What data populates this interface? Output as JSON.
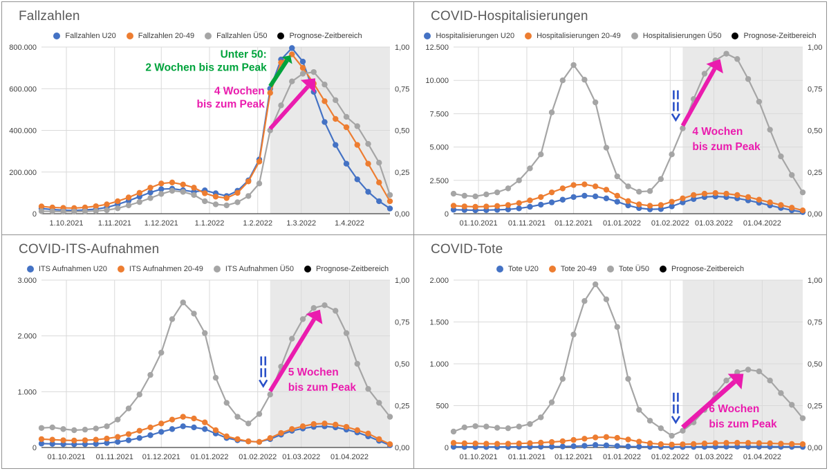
{
  "chart_data": [
    {
      "type": "line",
      "title": "Fallzahlen",
      "y_max": 800000,
      "y_ticks": [
        {
          "value": 800000,
          "label": "800.000"
        },
        {
          "value": 600000,
          "label": "600.000"
        },
        {
          "value": 400000,
          "label": "400.000"
        },
        {
          "value": 200000,
          "label": "200.000"
        },
        {
          "value": 0,
          "label": "0"
        }
      ],
      "right_axis_ticks": [
        "1,00",
        "0,75",
        "0,50",
        "0,25",
        "0,00"
      ],
      "right_axis_fractions": [
        1,
        0.75,
        0.5,
        0.25,
        0
      ],
      "x_range_days": 224,
      "week_interval_days": 7,
      "x_ticks": [
        {
          "day": 16,
          "label": "1.10.2021"
        },
        {
          "day": 47,
          "label": "1.11.2021"
        },
        {
          "day": 77,
          "label": "1.12.2021"
        },
        {
          "day": 108,
          "label": "1.1.2022"
        },
        {
          "day": 139,
          "label": "1.2.2022"
        },
        {
          "day": 167,
          "label": "1.3.2022"
        },
        {
          "day": 198,
          "label": "1.4.2022"
        }
      ],
      "forecast_start_day": 147,
      "forecast_band_color": "#E9E9E9",
      "forecast_legend": {
        "label": "Prognose-Zeitbereich",
        "color": "#000000"
      },
      "series": [
        {
          "name": "Fallzahlen U20",
          "color": "#4472C4",
          "values": [
            25000,
            20000,
            17000,
            16000,
            18000,
            22000,
            30000,
            45000,
            62000,
            82000,
            102000,
            118000,
            120000,
            113000,
            105000,
            112000,
            98000,
            85000,
            110000,
            160000,
            260000,
            600000,
            740000,
            795000,
            730000,
            585000,
            440000,
            330000,
            240000,
            165000,
            105000,
            60000,
            25000
          ]
        },
        {
          "name": "Fallzahlen 20-49",
          "color": "#ED7D31",
          "values": [
            35000,
            30000,
            28000,
            27000,
            30000,
            36000,
            45000,
            60000,
            78000,
            100000,
            125000,
            145000,
            150000,
            140000,
            125000,
            98000,
            82000,
            75000,
            100000,
            155000,
            250000,
            580000,
            725000,
            765000,
            700000,
            625000,
            540000,
            455000,
            415000,
            330000,
            240000,
            150000,
            60000
          ]
        },
        {
          "name": "Fallzahlen Ü50",
          "color": "#A5A5A5",
          "values": [
            12000,
            11000,
            10000,
            10000,
            11000,
            13000,
            17000,
            26000,
            40000,
            56000,
            75000,
            95000,
            110000,
            105000,
            90000,
            60000,
            45000,
            40000,
            55000,
            85000,
            145000,
            400000,
            520000,
            635000,
            672000,
            680000,
            620000,
            545000,
            465000,
            420000,
            335000,
            245000,
            90000
          ]
        }
      ],
      "annotations": {
        "texts": [
          {
            "lines": [
              "Unter 50:",
              "2 Wochen bis zum Peak"
            ],
            "color": "#00A33C",
            "anchor_day": 147,
            "dx": -5,
            "value": 748000,
            "line_gap": 19,
            "align": "right",
            "font_size": 15.5
          },
          {
            "lines": [
              "4 Wochen",
              "bis zum Peak"
            ],
            "color": "#EA1CAE",
            "anchor_day": 147,
            "dx": -8,
            "value": 572000,
            "line_gap": 19,
            "align": "right",
            "font_size": 15.5
          }
        ],
        "arrows": [
          {
            "color": "#00A33C",
            "from_day": 147,
            "from_value": 612000,
            "to_day": 160,
            "to_value": 760000,
            "width": 6,
            "head_length": 9,
            "head_width": 9
          },
          {
            "color": "#EA1CAE",
            "from_day": 147,
            "from_value": 408000,
            "to_day": 176,
            "to_value": 650000,
            "width": 6,
            "head_length": 16,
            "head_width": 14
          }
        ],
        "forecast_start_marker": null
      }
    },
    {
      "type": "line",
      "title": "COVID-Hospitalisierungen",
      "y_max": 12500,
      "y_ticks": [
        {
          "value": 12500,
          "label": "12.500"
        },
        {
          "value": 10000,
          "label": "10.000"
        },
        {
          "value": 7500,
          "label": "7.500"
        },
        {
          "value": 5000,
          "label": "5.000"
        },
        {
          "value": 2500,
          "label": "2.500"
        },
        {
          "value": 0,
          "label": "0"
        }
      ],
      "right_axis_ticks": [
        "1,00",
        "0,75",
        "0,50",
        "0,25",
        "0,00"
      ],
      "right_axis_fractions": [
        1,
        0.75,
        0.5,
        0.25,
        0
      ],
      "x_range_days": 224,
      "week_interval_days": 7,
      "x_ticks": [
        {
          "day": 16,
          "label": "01.10.2021"
        },
        {
          "day": 47,
          "label": "01.11.2021"
        },
        {
          "day": 77,
          "label": "01.12.2021"
        },
        {
          "day": 108,
          "label": "01.01.2022"
        },
        {
          "day": 139,
          "label": "01.02.2022"
        },
        {
          "day": 167,
          "label": "01.03.2022"
        },
        {
          "day": 198,
          "label": "01.04.2022"
        }
      ],
      "forecast_start_day": 147,
      "forecast_band_color": "#E9E9E9",
      "forecast_legend": {
        "label": "Prognose-Zeitbereich",
        "color": "#000000"
      },
      "series": [
        {
          "name": "Hospitalisierungen U20",
          "color": "#4472C4",
          "values": [
            300,
            280,
            260,
            270,
            290,
            320,
            400,
            520,
            680,
            850,
            1050,
            1250,
            1350,
            1300,
            1150,
            900,
            620,
            420,
            330,
            350,
            550,
            850,
            1100,
            1250,
            1300,
            1250,
            1150,
            1000,
            820,
            620,
            430,
            260,
            120
          ]
        },
        {
          "name": "Hospitalisierungen 20-49",
          "color": "#ED7D31",
          "values": [
            600,
            550,
            520,
            540,
            580,
            650,
            800,
            1000,
            1250,
            1600,
            1900,
            2150,
            2200,
            2050,
            1800,
            1350,
            950,
            700,
            600,
            650,
            900,
            1150,
            1400,
            1500,
            1550,
            1500,
            1400,
            1250,
            1050,
            850,
            650,
            450,
            250
          ]
        },
        {
          "name": "Hospitalisierungen Ü50",
          "color": "#A5A5A5",
          "values": [
            1500,
            1350,
            1300,
            1450,
            1600,
            1900,
            2500,
            3400,
            4450,
            7600,
            10000,
            11150,
            10050,
            8350,
            4950,
            2800,
            2050,
            1650,
            1700,
            2600,
            4450,
            6400,
            8600,
            10500,
            11500,
            12000,
            11600,
            10100,
            8400,
            6300,
            4300,
            2900,
            1600
          ]
        }
      ],
      "annotations": {
        "texts": [
          {
            "lines": [
              "4 Wochen",
              "bis zum Peak"
            ],
            "color": "#EA1CAE",
            "anchor_day": 147,
            "dx": 14,
            "value": 5900,
            "line_gap": 22,
            "align": "left",
            "font_size": 15.5
          }
        ],
        "arrows": [
          {
            "color": "#EA1CAE",
            "from_day": 147,
            "from_value": 6600,
            "to_day": 171,
            "to_value": 11600,
            "width": 6,
            "head_length": 16,
            "head_width": 14
          }
        ],
        "forecast_start_marker": {
          "day": 147,
          "value": 6400,
          "color": "#2950C8"
        }
      }
    },
    {
      "type": "line",
      "title": "COVID-ITS-Aufnahmen",
      "y_max": 3000,
      "y_ticks": [
        {
          "value": 3000,
          "label": "3.000"
        },
        {
          "value": 2000,
          "label": "2.000"
        },
        {
          "value": 1000,
          "label": "1.000"
        },
        {
          "value": 0,
          "label": "0"
        }
      ],
      "right_axis_ticks": [
        "1,00",
        "0,75",
        "0,50",
        "0,25",
        "0,00"
      ],
      "right_axis_fractions": [
        1,
        0.75,
        0.5,
        0.25,
        0
      ],
      "x_range_days": 224,
      "week_interval_days": 7,
      "x_ticks": [
        {
          "day": 16,
          "label": "01.10.2021"
        },
        {
          "day": 47,
          "label": "01.11.2021"
        },
        {
          "day": 77,
          "label": "01.12.2021"
        },
        {
          "day": 108,
          "label": "01.01.2022"
        },
        {
          "day": 139,
          "label": "01.02.2022"
        },
        {
          "day": 167,
          "label": "01.03.2022"
        },
        {
          "day": 198,
          "label": "01.04.2022"
        }
      ],
      "forecast_start_day": 147,
      "forecast_band_color": "#E9E9E9",
      "forecast_legend": {
        "label": "Prognose-Zeitbereich",
        "color": "#000000"
      },
      "series": [
        {
          "name": "ITS Aufnahmen U20",
          "color": "#4472C4",
          "values": [
            70,
            65,
            60,
            58,
            60,
            65,
            80,
            100,
            130,
            170,
            220,
            280,
            330,
            380,
            360,
            330,
            250,
            170,
            130,
            110,
            100,
            150,
            230,
            300,
            340,
            370,
            380,
            360,
            320,
            270,
            200,
            120,
            40
          ]
        },
        {
          "name": "ITS Aufnahmen 20-49",
          "color": "#ED7D31",
          "values": [
            150,
            140,
            130,
            125,
            130,
            140,
            160,
            190,
            240,
            300,
            360,
            430,
            500,
            550,
            520,
            450,
            310,
            200,
            150,
            110,
            100,
            170,
            260,
            330,
            380,
            420,
            430,
            410,
            370,
            310,
            250,
            150,
            60
          ]
        },
        {
          "name": "ITS Aufnahmen Ü50",
          "color": "#A5A5A5",
          "values": [
            350,
            360,
            330,
            310,
            320,
            340,
            380,
            500,
            700,
            950,
            1300,
            1700,
            2300,
            2600,
            2400,
            2050,
            1250,
            800,
            550,
            430,
            600,
            950,
            1450,
            1950,
            2300,
            2500,
            2550,
            2450,
            2050,
            1500,
            1050,
            800,
            550
          ]
        }
      ],
      "annotations": {
        "texts": [
          {
            "lines": [
              "5 Wochen",
              "bis zum Peak"
            ],
            "color": "#EA1CAE",
            "anchor_day": 147,
            "dx": 26,
            "value": 1290,
            "line_gap": 22,
            "align": "left",
            "font_size": 15.5
          }
        ],
        "arrows": [
          {
            "color": "#EA1CAE",
            "from_day": 147,
            "from_value": 1010,
            "to_day": 179,
            "to_value": 2470,
            "width": 6,
            "head_length": 16,
            "head_width": 14
          }
        ],
        "forecast_start_marker": {
          "day": 147,
          "value": 950,
          "color": "#2950C8"
        }
      }
    },
    {
      "type": "line",
      "title": "COVID-Tote",
      "y_max": 2000,
      "y_ticks": [
        {
          "value": 2000,
          "label": "2.000"
        },
        {
          "value": 1500,
          "label": "1.500"
        },
        {
          "value": 1000,
          "label": "1.000"
        },
        {
          "value": 500,
          "label": "500"
        },
        {
          "value": 0,
          "label": "0"
        }
      ],
      "right_axis_ticks": [
        "1,00",
        "0,75",
        "0,50",
        "0,25",
        "0,00"
      ],
      "right_axis_fractions": [
        1,
        0.75,
        0.5,
        0.25,
        0
      ],
      "x_range_days": 224,
      "week_interval_days": 7,
      "x_ticks": [
        {
          "day": 16,
          "label": "01.10.2021"
        },
        {
          "day": 47,
          "label": "01.11.2021"
        },
        {
          "day": 77,
          "label": "01.12.2021"
        },
        {
          "day": 108,
          "label": "01.01.2022"
        },
        {
          "day": 139,
          "label": "01.02.2022"
        },
        {
          "day": 167,
          "label": "01.03.2022"
        },
        {
          "day": 198,
          "label": "01.04.2022"
        }
      ],
      "forecast_start_day": 147,
      "forecast_band_color": "#E9E9E9",
      "forecast_legend": {
        "label": "Prognose-Zeitbereich",
        "color": "#000000"
      },
      "series": [
        {
          "name": "Tote U20",
          "color": "#4472C4",
          "values": [
            8,
            7,
            7,
            6,
            6,
            7,
            7,
            8,
            9,
            10,
            12,
            15,
            20,
            30,
            25,
            18,
            12,
            10,
            8,
            7,
            6,
            6,
            7,
            8,
            9,
            10,
            10,
            10,
            9,
            9,
            8,
            8,
            7
          ]
        },
        {
          "name": "Tote 20-49",
          "color": "#ED7D31",
          "values": [
            55,
            50,
            48,
            45,
            44,
            45,
            48,
            52,
            58,
            65,
            75,
            90,
            105,
            120,
            125,
            115,
            95,
            70,
            50,
            40,
            35,
            38,
            42,
            48,
            52,
            55,
            56,
            55,
            52,
            50,
            45,
            42,
            40
          ]
        },
        {
          "name": "Tote Ü50",
          "color": "#A5A5A5",
          "values": [
            190,
            240,
            255,
            250,
            235,
            230,
            250,
            280,
            360,
            540,
            820,
            1350,
            1750,
            1950,
            1770,
            1440,
            820,
            450,
            320,
            230,
            140,
            200,
            300,
            450,
            640,
            800,
            900,
            930,
            910,
            800,
            650,
            510,
            350
          ]
        }
      ],
      "annotations": {
        "texts": [
          {
            "lines": [
              "6 Wochen",
              "bis zum Peak"
            ],
            "color": "#EA1CAE",
            "anchor_day": 147,
            "dx": 38,
            "value": 420,
            "line_gap": 22,
            "align": "left",
            "font_size": 15.5
          }
        ],
        "arrows": [
          {
            "color": "#EA1CAE",
            "from_day": 147,
            "from_value": 240,
            "to_day": 186,
            "to_value": 880,
            "width": 7,
            "head_length": 17,
            "head_width": 15
          }
        ],
        "forecast_start_marker": {
          "day": 147,
          "value": 200,
          "color": "#2950C8"
        }
      }
    }
  ],
  "style_colors": {
    "gridline": "#D9D9D9",
    "axis_line": "#404040",
    "tick_text": "#404040",
    "title_text": "#595959"
  }
}
